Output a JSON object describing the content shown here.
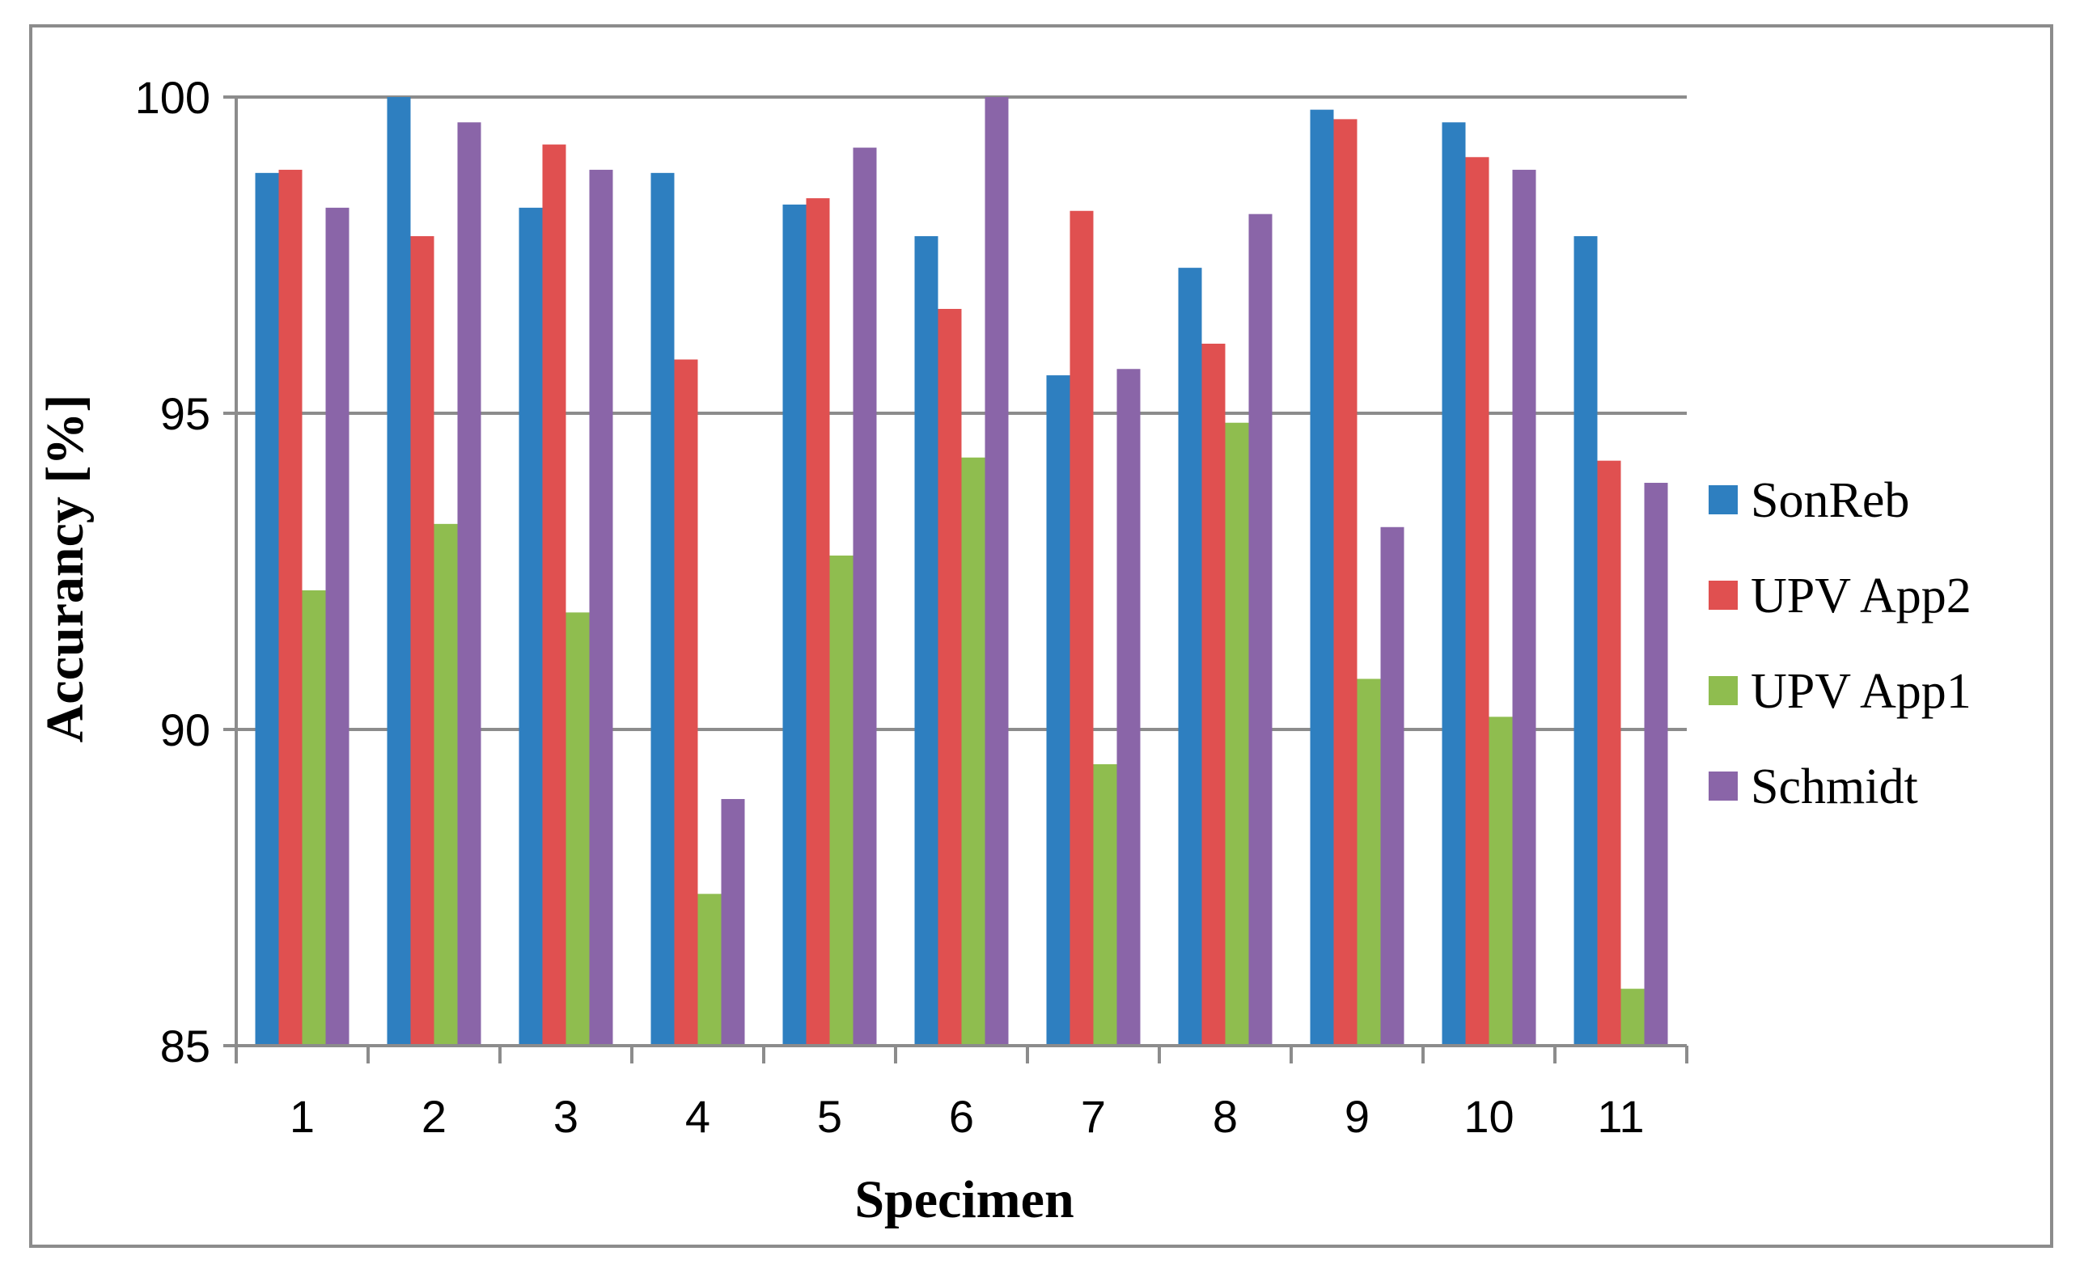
{
  "chart_data": {
    "type": "bar",
    "title": "",
    "xlabel": "Specimen",
    "ylabel": "Accurancy [%]",
    "ylim": [
      85,
      100
    ],
    "yticks": [
      "85",
      "90",
      "95",
      "100"
    ],
    "ytick_values": [
      85,
      90,
      95,
      100
    ],
    "grid": true,
    "legend_position": "right",
    "categories": [
      "1",
      "2",
      "3",
      "4",
      "5",
      "6",
      "7",
      "8",
      "9",
      "10",
      "11"
    ],
    "series": [
      {
        "name": "SonReb",
        "color": "#2e7fc0",
        "values": [
          98.8,
          100.0,
          98.25,
          98.8,
          98.3,
          97.8,
          95.6,
          97.3,
          99.8,
          99.6,
          97.8
        ]
      },
      {
        "name": "UPV App2",
        "color": "#e05050",
        "values": [
          98.85,
          97.8,
          99.25,
          95.85,
          98.4,
          96.65,
          98.2,
          96.1,
          99.65,
          99.05,
          94.25
        ]
      },
      {
        "name": "UPV App1",
        "color": "#8fbd4f",
        "values": [
          92.2,
          93.25,
          91.85,
          87.4,
          92.75,
          94.3,
          89.45,
          94.85,
          90.8,
          90.2,
          85.9
        ]
      },
      {
        "name": "Schmidt",
        "color": "#8a65a8",
        "values": [
          98.25,
          99.6,
          98.85,
          88.9,
          99.2,
          100.0,
          95.7,
          98.15,
          93.2,
          98.85,
          93.9
        ]
      }
    ]
  }
}
